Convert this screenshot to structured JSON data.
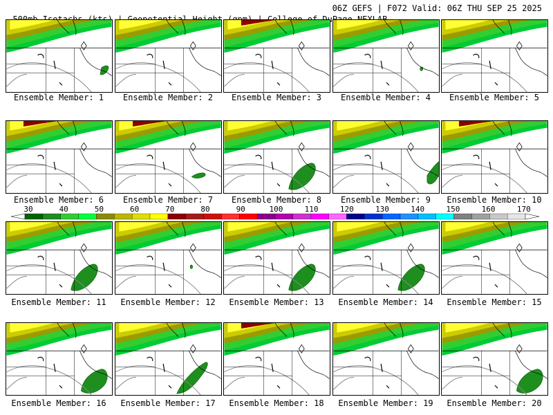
{
  "header": {
    "left": "500mb Isotachs (kts) | Geopotential Height (gpm) | College of DuPage NEXLAB",
    "right": "06Z GEFS | F072 Valid: 06Z THU SEP 25 2025"
  },
  "members": [
    {
      "label": "Ensemble Member: 1",
      "jet": "medium",
      "blob": "small-east"
    },
    {
      "label": "Ensemble Member: 2",
      "jet": "medium",
      "blob": "none"
    },
    {
      "label": "Ensemble Member: 3",
      "jet": "strong",
      "blob": "none"
    },
    {
      "label": "Ensemble Member: 4",
      "jet": "medium",
      "blob": "tiny-east"
    },
    {
      "label": "Ensemble Member: 5",
      "jet": "medium",
      "blob": "none"
    },
    {
      "label": "Ensemble Member: 6",
      "jet": "strong",
      "blob": "none"
    },
    {
      "label": "Ensemble Member: 7",
      "jet": "strong",
      "blob": "small-center"
    },
    {
      "label": "Ensemble Member: 8",
      "jet": "medium",
      "blob": "large-center"
    },
    {
      "label": "Ensemble Member: 9",
      "jet": "medium",
      "blob": "east-edge"
    },
    {
      "label": "Ensemble Member: 10",
      "jet": "strong",
      "blob": "none"
    },
    {
      "label": "Ensemble Member: 11",
      "jet": "medium",
      "blob": "large-center"
    },
    {
      "label": "Ensemble Member: 12",
      "jet": "medium",
      "blob": "tiny-center"
    },
    {
      "label": "Ensemble Member: 13",
      "jet": "medium",
      "blob": "large-center"
    },
    {
      "label": "Ensemble Member: 14",
      "jet": "medium",
      "blob": "large-center"
    },
    {
      "label": "Ensemble Member: 15",
      "jet": "medium",
      "blob": "none"
    },
    {
      "label": "Ensemble Member: 16",
      "jet": "medium",
      "blob": "large-east"
    },
    {
      "label": "Ensemble Member: 17",
      "jet": "medium",
      "blob": "long-center"
    },
    {
      "label": "Ensemble Member: 18",
      "jet": "strong",
      "blob": "none"
    },
    {
      "label": "Ensemble Member: 19",
      "jet": "medium",
      "blob": "none"
    },
    {
      "label": "Ensemble Member: 20",
      "jet": "medium",
      "blob": "large-east"
    }
  ],
  "colorbar": {
    "tick_labels": [
      "30",
      "40",
      "50",
      "60",
      "70",
      "80",
      "90",
      "100",
      "110",
      "120",
      "130",
      "140",
      "150",
      "160",
      "170"
    ],
    "colors": [
      "#006400",
      "#228b22",
      "#32cd32",
      "#00ff3c",
      "#8b8b00",
      "#bdb500",
      "#dddd00",
      "#ffff00",
      "#8b0000",
      "#a51a1a",
      "#cc1010",
      "#ff3030",
      "#ff0000",
      "#8b008b",
      "#b000b0",
      "#cc33cc",
      "#ff00ff",
      "#ff66ff",
      "#00008b",
      "#0033cc",
      "#0066ff",
      "#1e90ff",
      "#00bfff",
      "#00ffff",
      "#808080",
      "#a0a0a0",
      "#c8c8c8",
      "#e6e6e6"
    ]
  }
}
